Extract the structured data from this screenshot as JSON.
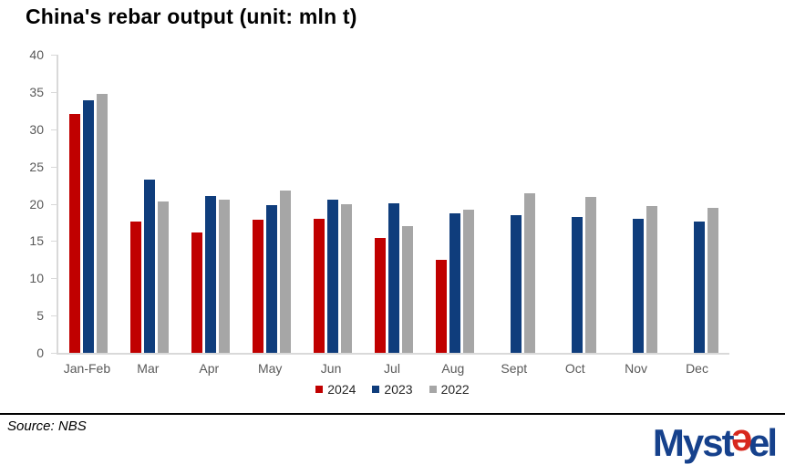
{
  "title": "China's rebar output (unit: mln t)",
  "source": {
    "text": "Source: NBS"
  },
  "logo": {
    "part1": "Myst",
    "part2": "e",
    "part3": "e",
    "part4": "l",
    "navy": "#16418C",
    "red": "#D7281E"
  },
  "axis": {
    "label_color": "#595959",
    "line_color": "#D9D9D9"
  },
  "chart_data": {
    "type": "bar",
    "title": "China's rebar output (unit: mln t)",
    "unit": "mln t",
    "categories": [
      "Jan-Feb",
      "Mar",
      "Apr",
      "May",
      "Jun",
      "Jul",
      "Aug",
      "Sept",
      "Oct",
      "Nov",
      "Dec"
    ],
    "series": [
      {
        "name": "2024",
        "color": "#C00000",
        "values": [
          32.0,
          17.6,
          16.2,
          17.9,
          18.0,
          15.4,
          12.5,
          null,
          null,
          null,
          null
        ]
      },
      {
        "name": "2023",
        "color": "#0F3D7C",
        "values": [
          33.9,
          23.3,
          21.0,
          19.8,
          20.5,
          20.1,
          18.7,
          18.5,
          18.2,
          18.0,
          17.6
        ]
      },
      {
        "name": "2022",
        "color": "#A6A6A6",
        "values": [
          34.8,
          20.3,
          20.5,
          21.8,
          20.0,
          17.0,
          19.2,
          21.4,
          20.9,
          19.7,
          19.4
        ]
      }
    ],
    "ylim": [
      0,
      40
    ],
    "ytick_step": 5,
    "grid": false,
    "legend_position": "bottom"
  }
}
